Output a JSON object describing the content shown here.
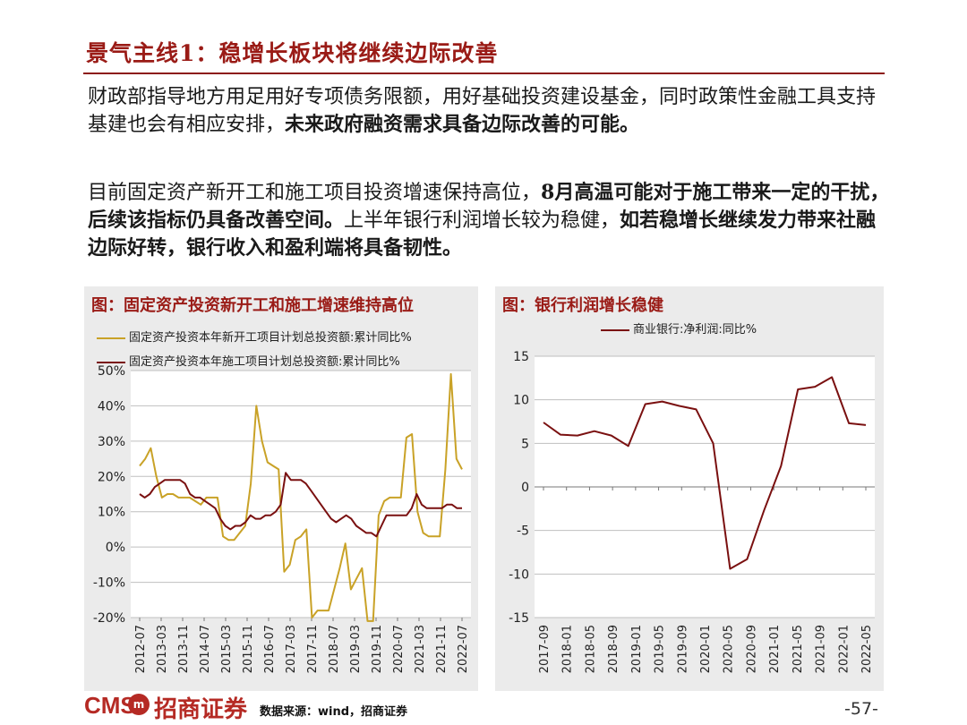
{
  "title": "景气主线1：稳增长板块将继续边际改善",
  "paragraph1": {
    "normal": "财政部指导地方用足用好专项债务限额，用好基础投资建设基金，同时政策性金融工具支持基建也会有相应安排，",
    "bold": "未来政府融资需求具备边际改善的可能。"
  },
  "paragraph2": {
    "normal1": "目前固定资产新开工和施工项目投资增速保持高位，",
    "bold1": "8月高温可能对于施工带来一定的干扰，后续该指标仍具备改善空间。",
    "normal2": "上半年银行利润增长较为稳健，",
    "bold2": "如若稳增长继续发力带来社融边际好转，银行收入和盈利端将具备韧性。"
  },
  "colors": {
    "accent": "#9a1b16",
    "gold": "#c9a227",
    "maroon": "#7a1010"
  },
  "chart_data": [
    {
      "type": "line",
      "title": "图：固定资产投资新开工和施工增速维持高位",
      "ylim": [
        -20,
        50
      ],
      "yticks": [
        "50%",
        "40%",
        "30%",
        "20%",
        "10%",
        "0%",
        "-10%",
        "-20%"
      ],
      "xticks": [
        "2012-07",
        "2013-03",
        "2013-11",
        "2014-07",
        "2015-03",
        "2015-11",
        "2016-07",
        "2017-03",
        "2017-11",
        "2018-07",
        "2019-03",
        "2019-11",
        "2020-07",
        "2021-03",
        "2021-11",
        "2022-07"
      ],
      "series": [
        {
          "name": "固定资产投资本年新开工项目计划总投资额:累计同比%",
          "color": "#c9a227",
          "values": [
            23,
            25,
            28,
            20,
            14,
            15,
            15,
            14,
            14,
            14,
            13,
            12,
            14,
            14,
            14,
            3,
            2,
            2,
            4,
            6,
            18,
            40,
            30,
            24,
            23,
            22,
            -7,
            -5,
            2,
            3,
            5,
            -20,
            -18,
            -18,
            -18,
            -12,
            -6,
            1,
            -12,
            -9,
            -6,
            -21,
            -21,
            9,
            13,
            14,
            14,
            14,
            31,
            32,
            10,
            4,
            3,
            3,
            3,
            22,
            49,
            25,
            22
          ],
          "x_range": [
            "2012-07",
            "2022-07"
          ]
        },
        {
          "name": "固定资产投资本年施工项目计划总投资额:累计同比%",
          "color": "#7a1010",
          "values": [
            15,
            14,
            15,
            17,
            18,
            19,
            19,
            19,
            19,
            18,
            15,
            14,
            14,
            13,
            12,
            11,
            8,
            6,
            5,
            6,
            6,
            7,
            9,
            8,
            8,
            9,
            9,
            10,
            12,
            21,
            19,
            19,
            19,
            18,
            16,
            14,
            12,
            10,
            8,
            7,
            8,
            9,
            8,
            6,
            5,
            4,
            4,
            3,
            6,
            9,
            9,
            9,
            9,
            9,
            11,
            15,
            12,
            11,
            11,
            11,
            11,
            12,
            12,
            11,
            11
          ]
        }
      ]
    },
    {
      "type": "line",
      "title": "图：银行利润增长稳健",
      "ylim": [
        -15,
        15
      ],
      "yticks": [
        "15",
        "10",
        "5",
        "0",
        "-5",
        "-10",
        "-15"
      ],
      "xticks": [
        "2017-09",
        "2018-01",
        "2018-05",
        "2018-09",
        "2019-01",
        "2019-05",
        "2019-09",
        "2020-01",
        "2020-05",
        "2020-09",
        "2021-01",
        "2021-05",
        "2021-09",
        "2022-01",
        "2022-05"
      ],
      "series": [
        {
          "name": "商业银行:净利润:同比%",
          "color": "#7a1010",
          "values": [
            7.4,
            6.0,
            5.9,
            6.4,
            5.9,
            4.7,
            9.5,
            9.8,
            9.3,
            8.9,
            5.0,
            -9.4,
            -8.3,
            -2.7,
            2.4,
            11.2,
            11.5,
            12.6,
            7.3,
            7.1
          ]
        }
      ]
    }
  ],
  "footer": {
    "logo": "CMS",
    "badge": "m",
    "brand": "招商证券",
    "source": "数据来源：wind，招商证券",
    "page": "-57-"
  }
}
